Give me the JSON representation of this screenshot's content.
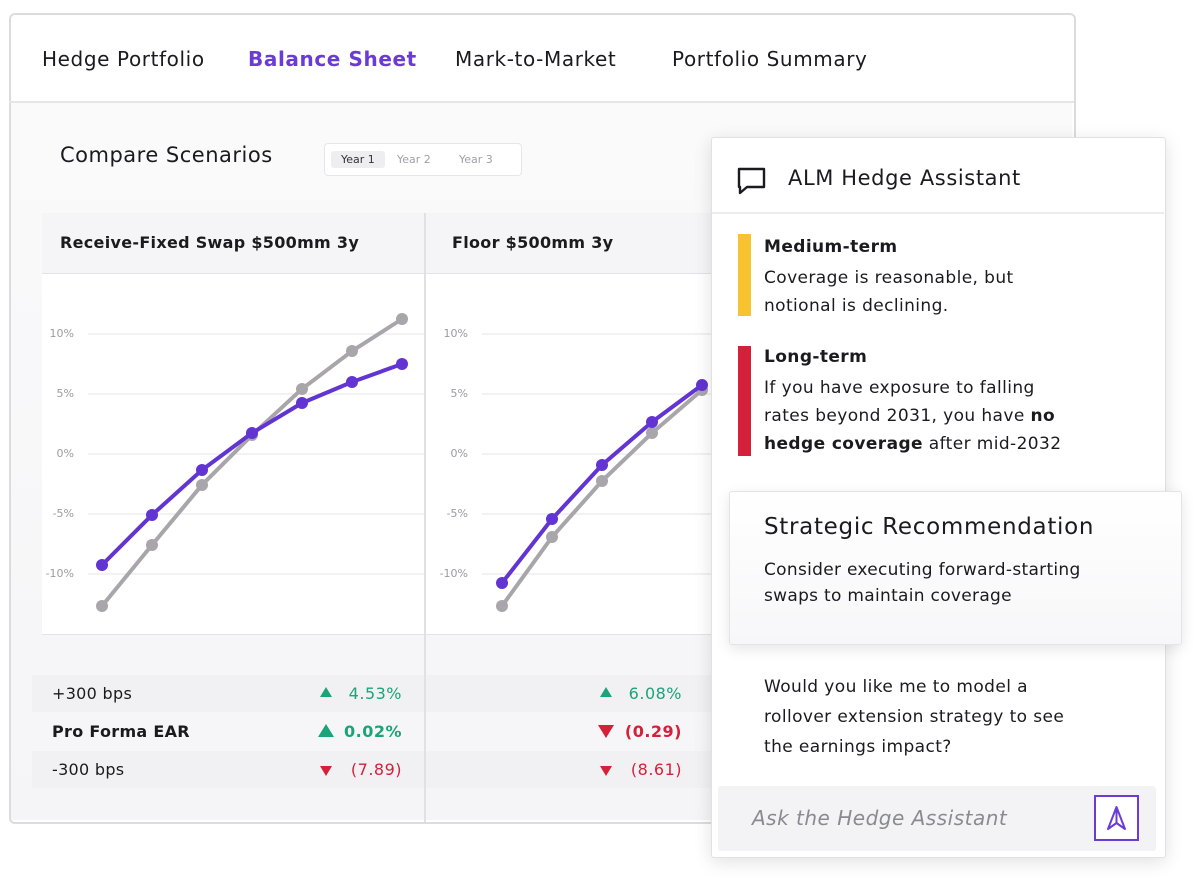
{
  "tabs": [
    "Hedge Portfolio",
    "Balance Sheet",
    "Mark-to-Market",
    "Portfolio Summary"
  ],
  "section_title": "Compare Scenarios",
  "year_selector": [
    "Year 1",
    "Year 2",
    "Year 3"
  ],
  "chart_data": [
    {
      "type": "line",
      "title": "Receive-Fixed Swap $500mm 3y",
      "categories": [
        null,
        null,
        null,
        null,
        null,
        null,
        null
      ],
      "ylim": [
        -15,
        13
      ],
      "yticks": [
        {
          "value": 10,
          "label": "10%"
        },
        {
          "value": 5,
          "label": "5%"
        },
        {
          "value": 0,
          "label": "0%"
        },
        {
          "value": -5,
          "label": "-5%"
        },
        {
          "value": -10,
          "label": "-10%"
        }
      ],
      "grid": true,
      "series": [
        {
          "color": "#a8a6ab",
          "values": [
            -12.67,
            -7.58,
            -2.58,
            1.58,
            5.42,
            8.58,
            11.25
          ]
        },
        {
          "color": "#6234d1",
          "values": [
            -9.25,
            -5.08,
            -1.33,
            1.75,
            4.25,
            6.0,
            7.5
          ]
        }
      ]
    },
    {
      "type": "line",
      "title": "Floor $500mm 3y",
      "categories": [
        null,
        null,
        null,
        null,
        null
      ],
      "ylim": [
        -15,
        13
      ],
      "yticks": [
        {
          "value": 10,
          "label": "10%"
        },
        {
          "value": 5,
          "label": "5%"
        },
        {
          "value": 0,
          "label": "0%"
        },
        {
          "value": -5,
          "label": "-5%"
        },
        {
          "value": -10,
          "label": "-10%"
        }
      ],
      "grid": true,
      "series": [
        {
          "color": "#a8a6ab",
          "values": [
            -12.67,
            -6.92,
            -2.25,
            1.75,
            5.33
          ]
        },
        {
          "color": "#6234d1",
          "values": [
            -10.75,
            -5.42,
            -0.92,
            2.67,
            5.75
          ]
        }
      ]
    }
  ],
  "scenario_table": {
    "rows": [
      "+300 bps",
      "Pro Forma EAR",
      "-300 bps"
    ],
    "values": [
      [
        "4.53%",
        "0.02%",
        "(7.89)"
      ],
      [
        "6.08%",
        "(0.29)",
        "(8.61)"
      ]
    ]
  },
  "assistant": {
    "title": "ALM Hedge Assistant",
    "messages": [
      {
        "heading": "Medium-term",
        "text": [
          "Coverage is reasonable, but notional is declining."
        ]
      },
      {
        "heading": "Long-term",
        "text": [
          "If you have exposure to falling rates beyond 2031, you have ",
          "no hedge coverage",
          " after mid-2032"
        ]
      }
    ],
    "recommendation": {
      "title": "Strategic Recommendation",
      "text": "Consider executing forward-starting swaps to maintain coverage"
    },
    "question": "Would you like me to model a rollover extension strategy to see the earnings impact?",
    "input_placeholder": "Ask the Hedge Assistant"
  }
}
